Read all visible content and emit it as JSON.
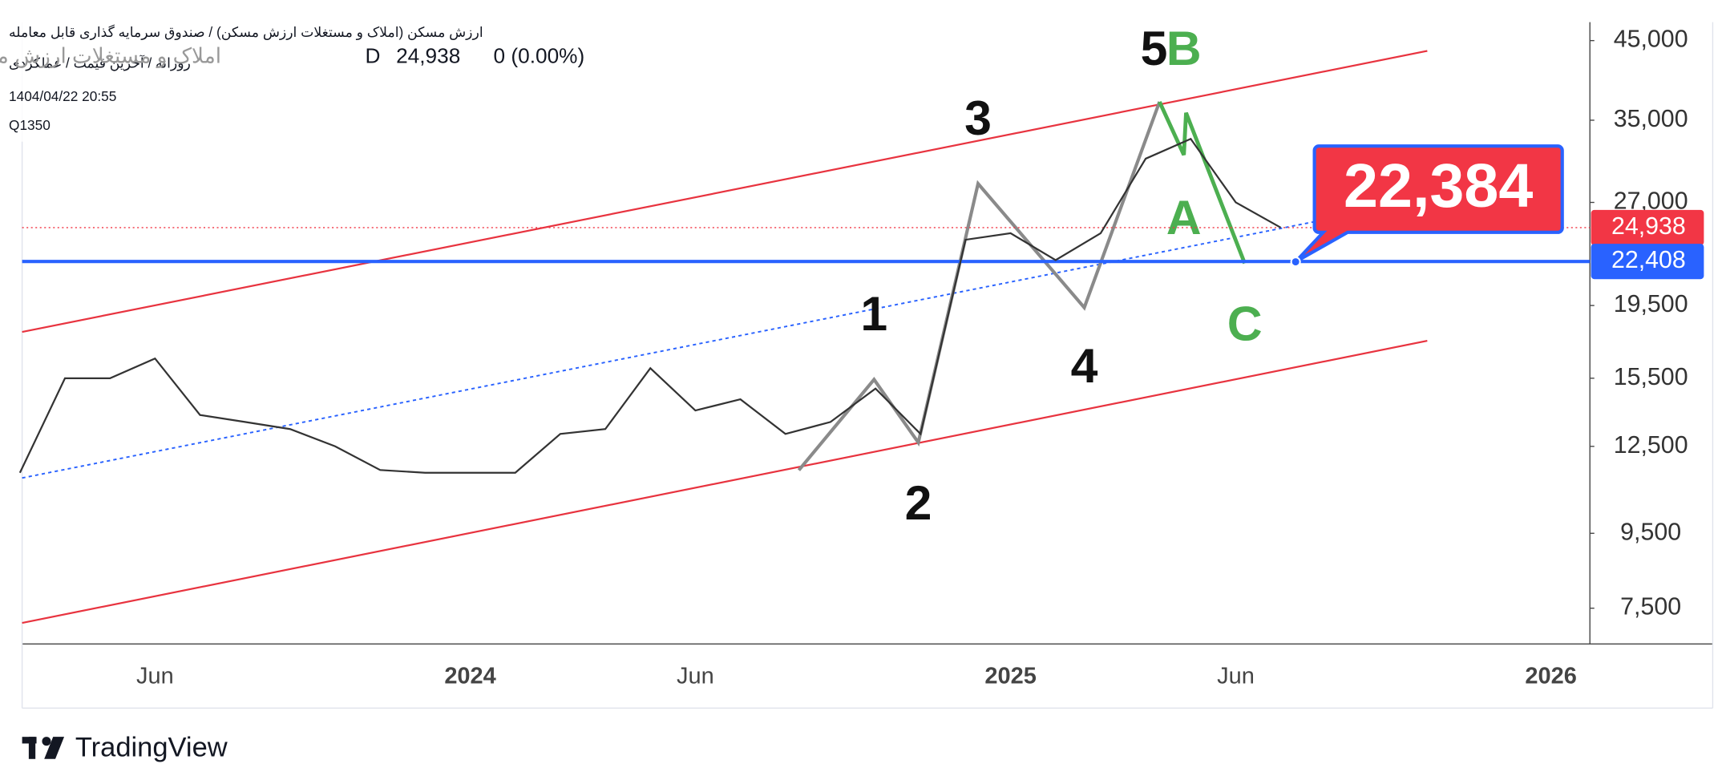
{
  "header": {
    "symbol_line": "ارزش مسکن (املاک و مستغلات ارزش مسکن) / صندوق سرمایه گذاری قابل معامله",
    "style_line": "روزانه / آخرین قیمت / عملکردی",
    "datetime": "1404/04/22 20:55",
    "code": "Q1350",
    "name": "املاک و مستغلات ارزش مسکن",
    "interval": "D",
    "change": "0 (0.00%)"
  },
  "chart_data": {
    "type": "line",
    "log_scale": true,
    "grid": false,
    "color": "#333333",
    "categories": [
      null,
      null,
      null,
      "Jun",
      null,
      null,
      null,
      null,
      null,
      null,
      "2024",
      null,
      null,
      null,
      null,
      "Jun",
      null,
      null,
      null,
      null,
      null,
      null,
      "2025",
      null,
      null,
      null,
      null,
      "Jun",
      null,
      null,
      null,
      null,
      null,
      null,
      "2026"
    ],
    "values": [
      11500,
      15500,
      15500,
      16500,
      13800,
      13500,
      13200,
      12500,
      11600,
      11500,
      11500,
      11500,
      13000,
      13200,
      16000,
      14000,
      14500,
      13000,
      13500,
      15000,
      13000,
      24000,
      24500,
      22500,
      24500,
      31000,
      33000,
      27000,
      24938,
      null,
      null,
      null,
      null,
      null,
      null
    ],
    "ylim": [
      6700,
      47700
    ],
    "yticks": [
      {
        "value": 7500,
        "label": "7,500"
      },
      {
        "value": 9500,
        "label": "9,500"
      },
      {
        "value": 12500,
        "label": "12,500"
      },
      {
        "value": 15500,
        "label": "15,500"
      },
      {
        "value": 19500,
        "label": "19,500"
      },
      {
        "value": 27000,
        "label": "27,000"
      },
      {
        "value": 35000,
        "label": "35,000"
      },
      {
        "value": 45000,
        "label": "45,000"
      }
    ],
    "last_price": {
      "value": 24938,
      "label": "24,938"
    },
    "hline": {
      "value": 22408,
      "label": "22,408"
    },
    "callout": {
      "value": 22384,
      "label": "22,384"
    },
    "annotations": [
      "1",
      "2",
      "3",
      "4",
      "5",
      "A",
      "B",
      "C"
    ]
  },
  "footer": {
    "brand": "TradingView"
  }
}
